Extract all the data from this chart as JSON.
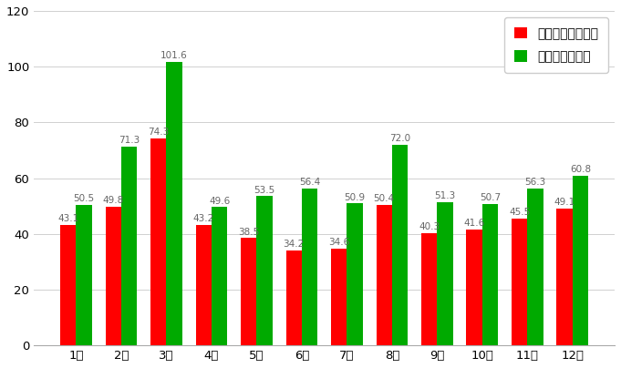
{
  "months": [
    "1月",
    "2月",
    "3月",
    "4月",
    "5月",
    "6月",
    "7月",
    "8月",
    "9月",
    "10月",
    "11月",
    "12月"
  ],
  "disneyland": [
    43.1,
    49.8,
    74.3,
    43.2,
    38.5,
    34.2,
    34.6,
    50.4,
    40.3,
    41.6,
    45.5,
    49.1
  ],
  "disneysea": [
    50.5,
    71.3,
    101.6,
    49.6,
    53.5,
    56.4,
    50.9,
    72.0,
    51.3,
    50.7,
    56.3,
    60.8
  ],
  "bar_color_land": "#ff0000",
  "bar_color_sea": "#00aa00",
  "legend_land": "ディズニーランド",
  "legend_sea": "ディズニーシー",
  "ylim": [
    0,
    120
  ],
  "yticks": [
    0,
    20,
    40,
    60,
    80,
    100,
    120
  ],
  "background_color": "#ffffff",
  "label_fontsize": 7.5,
  "tick_fontsize": 9.5,
  "legend_fontsize": 10
}
